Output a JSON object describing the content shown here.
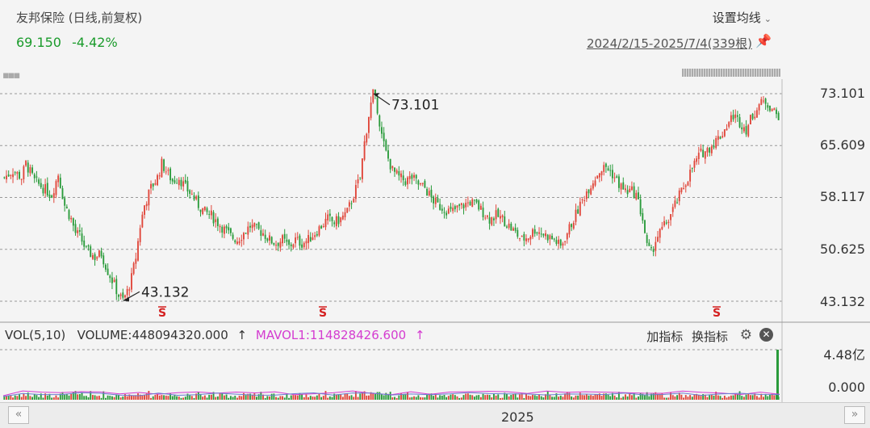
{
  "header": {
    "title": "友邦保险 (日线,前复权)",
    "price": "69.150",
    "change": "-4.42%",
    "settings_label": "设置均线",
    "range_label": "2024/2/15-2025/7/4(339根)"
  },
  "chart_data": {
    "type": "candlestick",
    "x_axis_label": "2025",
    "y_ticks": [
      "73.101",
      "65.609",
      "58.117",
      "50.625",
      "43.132"
    ],
    "ylim": [
      43.132,
      73.101
    ],
    "annotations": [
      {
        "text": "73.101",
        "kind": "high"
      },
      {
        "text": "43.132",
        "kind": "low"
      }
    ],
    "markers": [
      "S",
      "S",
      "S"
    ],
    "price_path": [
      [
        0,
        61
      ],
      [
        4,
        62
      ],
      [
        8,
        61
      ],
      [
        10,
        63
      ],
      [
        14,
        60.5
      ],
      [
        18,
        59.5
      ],
      [
        22,
        58.5
      ],
      [
        25,
        61.5
      ],
      [
        28,
        57
      ],
      [
        31,
        55
      ],
      [
        33,
        53
      ],
      [
        35,
        52.5
      ],
      [
        38,
        50.5
      ],
      [
        42,
        49.5
      ],
      [
        45,
        50
      ],
      [
        48,
        47.5
      ],
      [
        51,
        45.5
      ],
      [
        53,
        44
      ],
      [
        55,
        43.3
      ],
      [
        57,
        44.5
      ],
      [
        59,
        46.5
      ],
      [
        61,
        49.5
      ],
      [
        63,
        54
      ],
      [
        65,
        57
      ],
      [
        68,
        59.5
      ],
      [
        71,
        61
      ],
      [
        73,
        63
      ],
      [
        75,
        62
      ],
      [
        78,
        60.5
      ],
      [
        81,
        61
      ],
      [
        84,
        59.5
      ],
      [
        87,
        58.5
      ],
      [
        90,
        57
      ],
      [
        93,
        56
      ],
      [
        96,
        55.5
      ],
      [
        99,
        54.5
      ],
      [
        102,
        53.5
      ],
      [
        105,
        52.5
      ],
      [
        108,
        52
      ],
      [
        111,
        53
      ],
      [
        114,
        54
      ],
      [
        117,
        53.5
      ],
      [
        120,
        53
      ],
      [
        123,
        52
      ],
      [
        126,
        51.5
      ],
      [
        129,
        52
      ],
      [
        132,
        51
      ],
      [
        135,
        52
      ],
      [
        138,
        51.5
      ],
      [
        141,
        52
      ],
      [
        144,
        53
      ],
      [
        147,
        54
      ],
      [
        150,
        55
      ],
      [
        153,
        54.5
      ],
      [
        156,
        55
      ],
      [
        159,
        56
      ],
      [
        162,
        58.5
      ],
      [
        165,
        61
      ],
      [
        167,
        66
      ],
      [
        169,
        70
      ],
      [
        171,
        73.1
      ],
      [
        173,
        71
      ],
      [
        175,
        67
      ],
      [
        177,
        64.5
      ],
      [
        180,
        62
      ],
      [
        183,
        61
      ],
      [
        186,
        60.5
      ],
      [
        189,
        61
      ],
      [
        192,
        60
      ],
      [
        195,
        59.5
      ],
      [
        198,
        58
      ],
      [
        201,
        57
      ],
      [
        204,
        56.5
      ],
      [
        207,
        56
      ],
      [
        210,
        56.5
      ],
      [
        213,
        57
      ],
      [
        216,
        57.5
      ],
      [
        219,
        57
      ],
      [
        222,
        56
      ],
      [
        225,
        55
      ],
      [
        228,
        55.5
      ],
      [
        231,
        55
      ],
      [
        234,
        54
      ],
      [
        237,
        53
      ],
      [
        240,
        52
      ],
      [
        243,
        52.5
      ],
      [
        246,
        53.5
      ],
      [
        249,
        53
      ],
      [
        252,
        52.5
      ],
      [
        255,
        52
      ],
      [
        258,
        51
      ],
      [
        261,
        53
      ],
      [
        264,
        55
      ],
      [
        267,
        57
      ],
      [
        270,
        59
      ],
      [
        273,
        60.5
      ],
      [
        276,
        62
      ],
      [
        279,
        62.5
      ],
      [
        282,
        61.5
      ],
      [
        285,
        60
      ],
      [
        288,
        59
      ],
      [
        291,
        59
      ],
      [
        293,
        58.5
      ],
      [
        296,
        55
      ],
      [
        298,
        51
      ],
      [
        300,
        50
      ],
      [
        302,
        52
      ],
      [
        305,
        53.5
      ],
      [
        308,
        55
      ],
      [
        311,
        57
      ],
      [
        314,
        59
      ],
      [
        317,
        61
      ],
      [
        320,
        63
      ],
      [
        323,
        64.5
      ],
      [
        326,
        65
      ],
      [
        329,
        66
      ],
      [
        332,
        67
      ],
      [
        335,
        68.5
      ],
      [
        338,
        70
      ],
      [
        341,
        69
      ],
      [
        344,
        68
      ],
      [
        347,
        70
      ],
      [
        350,
        71.5
      ],
      [
        353,
        72
      ],
      [
        356,
        71
      ],
      [
        358,
        70
      ]
    ],
    "volume": {
      "label": "VOL(5,10)",
      "value_text": "VOLUME:448094320.000",
      "ma_text": "MAVOL1:114828426.600",
      "arrow": "↑",
      "y_ticks": [
        "4.48亿",
        "0.000"
      ],
      "last_bar_value": 448094320
    }
  },
  "toolbar": {
    "add_indicator": "加指标",
    "switch_indicator": "换指标"
  },
  "nav": {
    "left": "«",
    "right": "»"
  },
  "colors": {
    "up": "#e0463a",
    "down": "#2a9b3b",
    "mavol": "#d43cd0",
    "ma_blue": "#6a7fd0"
  }
}
